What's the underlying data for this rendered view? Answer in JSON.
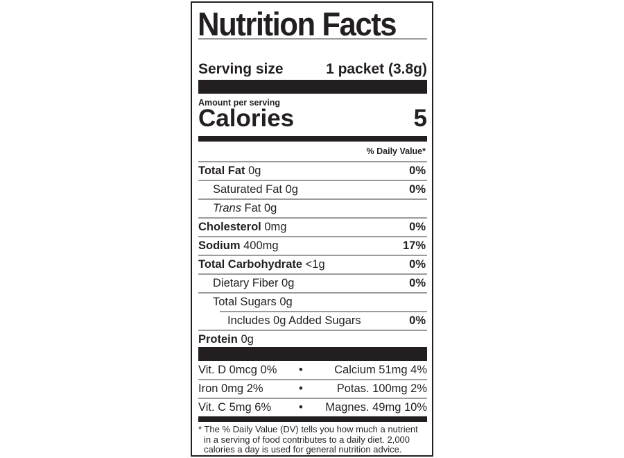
{
  "title": "Nutrition Facts",
  "serving": {
    "label": "Serving size",
    "value": "1 packet (3.8g)"
  },
  "amount_per_serving": "Amount per serving",
  "calories": {
    "label": "Calories",
    "value": "5"
  },
  "daily_value_header": "% Daily Value*",
  "nutrients": [
    {
      "name": "Total Fat",
      "amount": "0g",
      "dv": "0%",
      "bold": true,
      "indent": 0
    },
    {
      "name": "Saturated Fat",
      "amount": "0g",
      "dv": "0%",
      "bold": false,
      "indent": 1
    },
    {
      "name": "Trans",
      "name_suffix": "Fat",
      "amount": "0g",
      "dv": "",
      "bold": false,
      "indent": 1
    },
    {
      "name": "Cholesterol",
      "amount": "0mg",
      "dv": "0%",
      "bold": true,
      "indent": 0
    },
    {
      "name": "Sodium",
      "amount": "400mg",
      "dv": "17%",
      "bold": true,
      "indent": 0
    },
    {
      "name": "Total Carbohydrate",
      "amount": "<1g",
      "dv": "0%",
      "bold": true,
      "indent": 0
    },
    {
      "name": "Dietary Fiber",
      "amount": "0g",
      "dv": "0%",
      "bold": false,
      "indent": 1
    },
    {
      "name": "Total Sugars",
      "amount": "0g",
      "dv": "",
      "bold": false,
      "indent": 1
    },
    {
      "name": "Includes 0g Added Sugars",
      "amount": "",
      "dv": "0%",
      "bold": false,
      "indent": 2
    },
    {
      "name": "Protein",
      "amount": "0g",
      "dv": "",
      "bold": true,
      "indent": 0
    }
  ],
  "vitamins": [
    {
      "left": "Vit. D 0mcg 0%",
      "sep": "•",
      "right": "Calcium 51mg 4%"
    },
    {
      "left": "Iron 0mg 2%",
      "sep": "•",
      "right": "Potas. 100mg 2%"
    },
    {
      "left": "Vit. C 5mg 6%",
      "sep": "•",
      "right": "Magnes. 49mg 10%"
    }
  ],
  "footnote": [
    "* The % Daily Value (DV) tells you how much a nutrient",
    "in a serving of food contributes to a daily diet. 2,000",
    "calories a day is used for general nutrition advice."
  ],
  "colors": {
    "ink": "#231f20",
    "rule": "#9b9b9b"
  }
}
